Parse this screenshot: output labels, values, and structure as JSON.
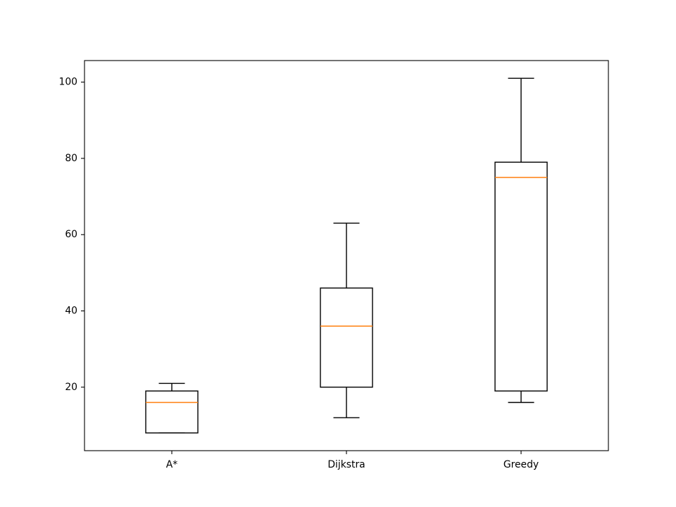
{
  "chart_data": {
    "type": "boxplot",
    "categories": [
      "A*",
      "Dijkstra",
      "Greedy"
    ],
    "boxes": [
      {
        "label": "A*",
        "whisker_low": 8,
        "q1": 8,
        "median": 16,
        "q3": 19,
        "whisker_high": 21
      },
      {
        "label": "Dijkstra",
        "whisker_low": 12,
        "q1": 20,
        "median": 36,
        "q3": 46,
        "whisker_high": 63
      },
      {
        "label": "Greedy",
        "whisker_low": 16,
        "q1": 19,
        "median": 75,
        "q3": 79,
        "whisker_high": 101
      }
    ],
    "yticks": [
      20,
      40,
      60,
      80,
      100
    ],
    "ylim": [
      3.35,
      105.65
    ],
    "title": "",
    "xlabel": "",
    "ylabel": "",
    "grid": false,
    "colors": {
      "box": "#000000",
      "median": "#ff7f0e",
      "axes": "#000000",
      "background": "#ffffff"
    }
  }
}
